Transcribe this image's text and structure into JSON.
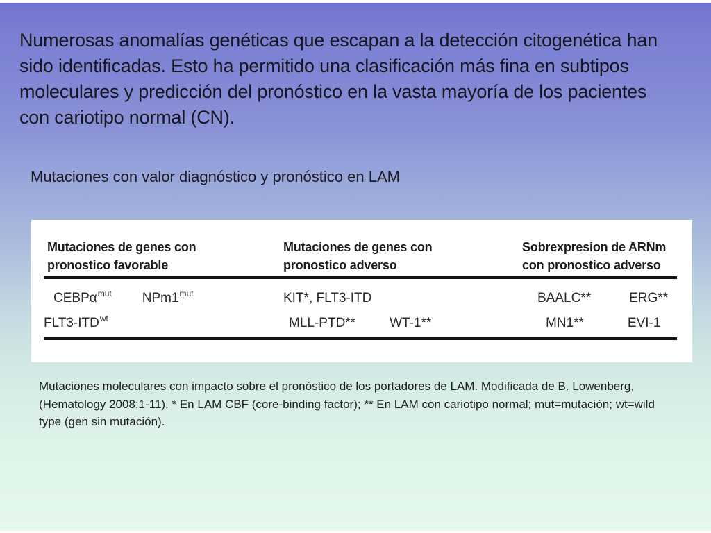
{
  "slide": {
    "intro_lines": [
      "Numerosas anomalías genéticas que escapan a la detección citogenética han",
      "sido identificadas. Esto ha permitido una clasificación más fina en subtipos",
      "moleculares y predicción del pronóstico en la vasta mayoría de los pacientes",
      "con cariotipo normal (CN)."
    ],
    "subtitle": "Mutaciones con valor diagnóstico y pronóstico en LAM",
    "table": {
      "headers": [
        {
          "line1": "Mutaciones de genes con",
          "line2": "pronostico favorable"
        },
        {
          "line1": "Mutaciones de genes con",
          "line2": "pronostico adverso"
        },
        {
          "line1": "Sobrexpresion de ARNm",
          "line2": "con pronostico adverso"
        }
      ],
      "rows": [
        {
          "favorable": [
            {
              "base": "CEBPα",
              "sup": "mut"
            },
            {
              "base": "NPm1",
              "sup": "mut"
            }
          ],
          "adverse": [
            {
              "base": "KIT*, FLT3-ITD",
              "sup": ""
            }
          ],
          "overexpression": [
            {
              "base": "BAALC**",
              "sup": ""
            },
            {
              "base": "ERG**",
              "sup": ""
            }
          ]
        },
        {
          "favorable": [
            {
              "base": "FLT3-ITD",
              "sup": "wt"
            }
          ],
          "adverse": [
            {
              "base": "MLL-PTD**",
              "sup": ""
            },
            {
              "base": "WT-1**",
              "sup": ""
            }
          ],
          "overexpression": [
            {
              "base": "MN1**",
              "sup": ""
            },
            {
              "base": "EVI-1",
              "sup": ""
            }
          ]
        }
      ]
    },
    "footnote_lines": [
      "Mutaciones moleculares con impacto sobre el pronóstico de los portadores de LAM. Modificada de B. Lowenberg,",
      "(Hematology 2008:1-11).  * En LAM CBF (core-binding factor); ** En LAM con cariotipo normal; mut=mutación; wt=wild",
      "type (gen sin mutación)."
    ]
  },
  "colors": {
    "gradient_top": "#7175ce",
    "gradient_bottom": "#e4f8ee",
    "table_background": "#ffffff",
    "rule_color": "#141414",
    "text_dark": "#17171f"
  }
}
